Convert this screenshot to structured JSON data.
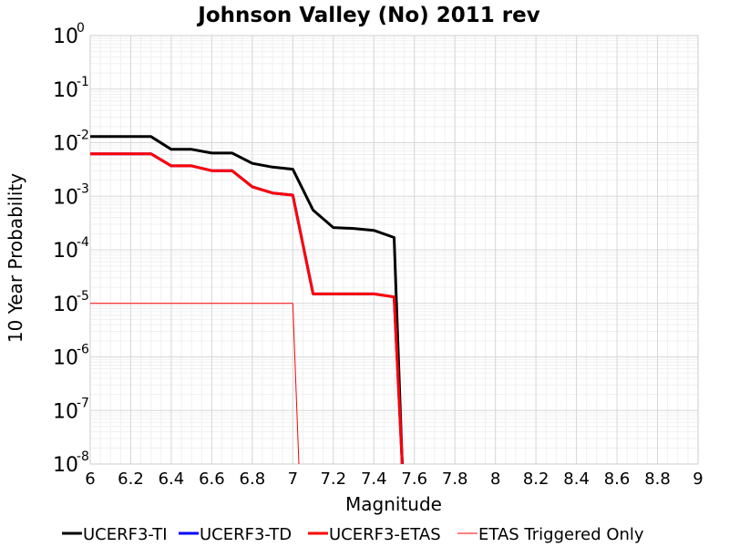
{
  "chart_data": {
    "type": "line",
    "title": "Johnson Valley (No) 2011 rev",
    "xlabel": "Magnitude",
    "ylabel": "10 Year Probability",
    "xlim": [
      6,
      9
    ],
    "ylim": [
      1e-08,
      1
    ],
    "yscale": "log",
    "grid": true,
    "legend_position": "bottom",
    "x_ticks": [
      "6",
      "6.2",
      "6.4",
      "6.6",
      "6.8",
      "7",
      "7.2",
      "7.4",
      "7.6",
      "7.8",
      "8",
      "8.2",
      "8.4",
      "8.6",
      "8.8",
      "9"
    ],
    "y_ticks": [
      {
        "base": "10",
        "exp": "0"
      },
      {
        "base": "10",
        "exp": "-1"
      },
      {
        "base": "10",
        "exp": "-2"
      },
      {
        "base": "10",
        "exp": "-3"
      },
      {
        "base": "10",
        "exp": "-4"
      },
      {
        "base": "10",
        "exp": "-5"
      },
      {
        "base": "10",
        "exp": "-6"
      },
      {
        "base": "10",
        "exp": "-7"
      },
      {
        "base": "10",
        "exp": "-8"
      }
    ],
    "series": [
      {
        "name": "UCERF3-TI",
        "color": "#000000",
        "x": [
          6.0,
          6.1,
          6.2,
          6.3,
          6.4,
          6.5,
          6.6,
          6.7,
          6.8,
          6.9,
          7.0,
          7.1,
          7.2,
          7.3,
          7.4,
          7.5,
          7.54
        ],
        "y": [
          0.013,
          0.013,
          0.013,
          0.013,
          0.0075,
          0.0075,
          0.0064,
          0.0064,
          0.0041,
          0.0035,
          0.0032,
          0.00055,
          0.00026,
          0.00025,
          0.00023,
          0.00017,
          1e-08
        ]
      },
      {
        "name": "UCERF3-TD",
        "color": "#0000ff",
        "x": [
          6.0,
          6.1,
          6.2,
          6.3,
          6.4,
          6.5,
          6.6,
          6.7,
          6.8,
          6.9,
          7.0,
          7.1,
          7.2,
          7.3,
          7.4,
          7.5,
          7.54
        ],
        "y": [
          0.0062,
          0.0062,
          0.0062,
          0.0062,
          0.0037,
          0.0037,
          0.003,
          0.003,
          0.0015,
          0.00115,
          0.00105,
          1.5e-05,
          1.5e-05,
          1.5e-05,
          1.5e-05,
          1.32e-05,
          1e-08
        ]
      },
      {
        "name": "UCERF3-ETAS",
        "color": "#ff0000",
        "x": [
          6.0,
          6.1,
          6.2,
          6.3,
          6.4,
          6.5,
          6.6,
          6.7,
          6.8,
          6.9,
          7.0,
          7.1,
          7.2,
          7.3,
          7.4,
          7.5,
          7.54
        ],
        "y": [
          0.0062,
          0.0062,
          0.0062,
          0.0062,
          0.0037,
          0.0037,
          0.003,
          0.003,
          0.0015,
          0.00115,
          0.00105,
          1.5e-05,
          1.5e-05,
          1.5e-05,
          1.5e-05,
          1.32e-05,
          1e-08
        ]
      },
      {
        "name": "ETAS Triggered Only",
        "color": "#ff0000",
        "x": [
          6.0,
          6.1,
          6.2,
          6.3,
          6.4,
          6.5,
          6.6,
          6.7,
          6.8,
          6.9,
          7.0,
          7.03
        ],
        "y": [
          1e-05,
          1e-05,
          1e-05,
          1e-05,
          1e-05,
          1e-05,
          1e-05,
          1e-05,
          1e-05,
          1e-05,
          1e-05,
          1e-08
        ]
      }
    ]
  }
}
